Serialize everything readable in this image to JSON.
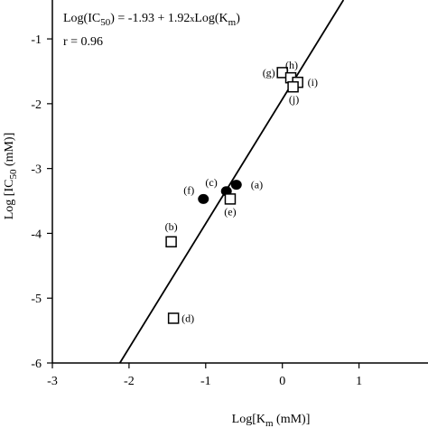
{
  "chart_data": {
    "type": "scatter",
    "title": "",
    "equation": {
      "main": "Log(IC",
      "sub": "50",
      "middle": ") = -1.93 + 1.92",
      "times": "x",
      "log": "Log(K",
      "km_sub": "m",
      "close": ")"
    },
    "r_text": "r = 0.96",
    "xlabel": {
      "main": "Log[K",
      "sub": "m",
      "rest": " (mM)]"
    },
    "ylabel": {
      "main": "Log [IC",
      "sub": "50",
      "rest": " (mM)]"
    },
    "xlim": [
      -3,
      1.9
    ],
    "ylim": [
      -6,
      -0.4
    ],
    "xticks": [
      -3,
      -2,
      -1,
      0,
      1
    ],
    "yticks": [
      -6,
      -5,
      -4,
      -3,
      -2,
      -1
    ],
    "xtick_labels": [
      "-3",
      "-2",
      "-1",
      "0",
      "1"
    ],
    "ytick_labels": [
      "-6",
      "-5",
      "-4",
      "-3",
      "-2",
      "-1"
    ],
    "regression": {
      "intercept": -1.93,
      "slope": 1.92
    },
    "series": [
      {
        "marker": "filled-circle",
        "points": [
          {
            "label": "(a)",
            "x": -0.6,
            "y": -3.25
          },
          {
            "label": "(c)",
            "x": -0.73,
            "y": -3.35
          },
          {
            "label": "(f)",
            "x": -1.03,
            "y": -3.47
          }
        ]
      },
      {
        "marker": "open-square",
        "points": [
          {
            "label": "(b)",
            "x": -1.45,
            "y": -4.13
          },
          {
            "label": "(d)",
            "x": -1.42,
            "y": -5.31
          },
          {
            "label": "(e)",
            "x": -0.68,
            "y": -3.47
          },
          {
            "label": "(g)",
            "x": 0.0,
            "y": -1.52
          },
          {
            "label": "(h)",
            "x": 0.11,
            "y": -1.6
          },
          {
            "label": "(i)",
            "x": 0.2,
            "y": -1.67
          },
          {
            "label": "(j)",
            "x": 0.14,
            "y": -1.74
          }
        ]
      }
    ]
  }
}
